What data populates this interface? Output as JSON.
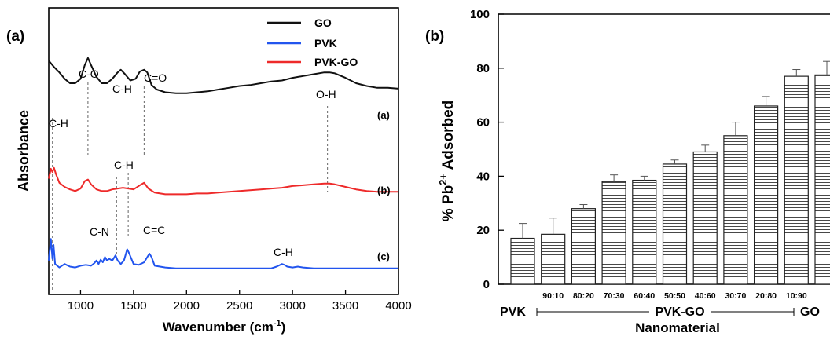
{
  "chart_data": [
    {
      "panel_label": "(a)",
      "type": "line",
      "xlabel": "Wavenumber (cm",
      "xlabel_sup": "-1",
      "xlabel_end": ")",
      "ylabel": "Absorbance",
      "xlim": [
        700,
        4000
      ],
      "x_ticks": [
        1000,
        1500,
        2000,
        2500,
        3000,
        3500,
        4000
      ],
      "legend": [
        {
          "name": "GO",
          "color": "#111111"
        },
        {
          "name": "PVK",
          "color": "#2255ee"
        },
        {
          "name": "PVK-GO",
          "color": "#ee2a2a"
        }
      ],
      "curve_labels": [
        "(a)",
        "(b)",
        "(c)"
      ],
      "annotations": [
        "C-O",
        "C-H",
        "C=O",
        "O-H",
        "C-H",
        "C-H",
        "C-N",
        "C=C",
        "C-H"
      ],
      "series": [
        {
          "name": "GO",
          "color": "#111111",
          "x": [
            700,
            750,
            800,
            850,
            900,
            950,
            1000,
            1040,
            1070,
            1100,
            1150,
            1200,
            1250,
            1300,
            1350,
            1380,
            1420,
            1470,
            1520,
            1560,
            1600,
            1630,
            1670,
            1720,
            1800,
            1900,
            2000,
            2100,
            2200,
            2300,
            2400,
            2500,
            2600,
            2700,
            2800,
            2900,
            3000,
            3100,
            3200,
            3300,
            3350,
            3400,
            3500,
            3600,
            3700,
            3800,
            3900,
            4000
          ],
          "y": [
            0.85,
            0.78,
            0.72,
            0.65,
            0.6,
            0.6,
            0.65,
            0.8,
            0.88,
            0.8,
            0.67,
            0.6,
            0.6,
            0.65,
            0.72,
            0.75,
            0.7,
            0.63,
            0.65,
            0.73,
            0.75,
            0.72,
            0.58,
            0.53,
            0.5,
            0.49,
            0.49,
            0.5,
            0.51,
            0.53,
            0.55,
            0.57,
            0.58,
            0.6,
            0.62,
            0.63,
            0.66,
            0.68,
            0.7,
            0.72,
            0.72,
            0.71,
            0.66,
            0.6,
            0.57,
            0.55,
            0.55,
            0.54
          ]
        },
        {
          "name": "PVK-GO",
          "color": "#ee2a2a",
          "x": [
            700,
            720,
            735,
            750,
            770,
            800,
            850,
            900,
            950,
            1000,
            1040,
            1070,
            1100,
            1150,
            1200,
            1250,
            1300,
            1350,
            1400,
            1450,
            1500,
            1560,
            1600,
            1640,
            1700,
            1800,
            1900,
            2000,
            2100,
            2200,
            2300,
            2400,
            2500,
            2600,
            2700,
            2800,
            2900,
            3000,
            3100,
            3200,
            3300,
            3350,
            3400,
            3500,
            3600,
            3700,
            3800,
            3900,
            4000
          ],
          "y": [
            0.5,
            0.62,
            0.58,
            0.63,
            0.55,
            0.45,
            0.4,
            0.37,
            0.35,
            0.38,
            0.47,
            0.49,
            0.43,
            0.37,
            0.35,
            0.35,
            0.37,
            0.38,
            0.39,
            0.38,
            0.37,
            0.42,
            0.45,
            0.38,
            0.33,
            0.31,
            0.31,
            0.31,
            0.32,
            0.32,
            0.33,
            0.34,
            0.35,
            0.36,
            0.37,
            0.38,
            0.39,
            0.41,
            0.42,
            0.43,
            0.44,
            0.44,
            0.43,
            0.4,
            0.37,
            0.35,
            0.34,
            0.34,
            0.34
          ]
        },
        {
          "name": "PVK",
          "color": "#2255ee",
          "x": [
            700,
            720,
            735,
            745,
            760,
            780,
            800,
            850,
            900,
            950,
            1000,
            1050,
            1100,
            1130,
            1150,
            1170,
            1190,
            1210,
            1230,
            1250,
            1270,
            1300,
            1330,
            1350,
            1380,
            1410,
            1440,
            1460,
            1480,
            1500,
            1550,
            1600,
            1630,
            1650,
            1670,
            1700,
            1800,
            1900,
            2000,
            2100,
            2200,
            2300,
            2400,
            2500,
            2600,
            2700,
            2800,
            2850,
            2900,
            2925,
            2950,
            3000,
            3050,
            3100,
            3200,
            3400,
            3600,
            3800,
            4000
          ],
          "y": [
            0.12,
            0.37,
            0.14,
            0.3,
            0.08,
            0.06,
            0.04,
            0.08,
            0.05,
            0.04,
            0.06,
            0.07,
            0.06,
            0.09,
            0.12,
            0.08,
            0.13,
            0.1,
            0.16,
            0.12,
            0.14,
            0.12,
            0.18,
            0.12,
            0.08,
            0.12,
            0.25,
            0.2,
            0.14,
            0.08,
            0.07,
            0.1,
            0.16,
            0.2,
            0.16,
            0.06,
            0.04,
            0.03,
            0.03,
            0.03,
            0.03,
            0.03,
            0.03,
            0.03,
            0.03,
            0.03,
            0.03,
            0.05,
            0.08,
            0.07,
            0.05,
            0.04,
            0.05,
            0.04,
            0.03,
            0.03,
            0.03,
            0.03,
            0.03
          ]
        }
      ]
    },
    {
      "panel_label": "(b)",
      "type": "bar",
      "ylabel": "% Pb",
      "ylabel_sup": "2+",
      "ylabel_end": " Adsorbed",
      "xlabel": "Nanomaterial",
      "ylim": [
        0,
        100
      ],
      "y_ticks": [
        0,
        20,
        40,
        60,
        80,
        100
      ],
      "categories": [
        "PVK",
        "90:10",
        "80:20",
        "70:30",
        "60:40",
        "50:50",
        "40:60",
        "30:70",
        "20:80",
        "10:90",
        "GO"
      ],
      "values": [
        17,
        18.5,
        28,
        38,
        38.5,
        44.5,
        49,
        55,
        66,
        77,
        77.5
      ],
      "errors": [
        5.5,
        6,
        1.5,
        2.5,
        1.5,
        1.5,
        2.5,
        5,
        3.5,
        2.5,
        5
      ],
      "group_labels": {
        "left": "PVK",
        "middle": "PVK-GO",
        "right": "GO"
      }
    }
  ]
}
